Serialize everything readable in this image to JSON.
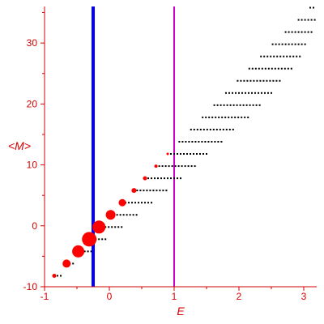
{
  "chart_data": {
    "type": "scatter",
    "xlabel": "E",
    "ylabel": "<M>",
    "xlim": [
      -1,
      3.2
    ],
    "ylim": [
      -10,
      36
    ],
    "xticks": [
      -1,
      0,
      1,
      2,
      3
    ],
    "xtick_labels": [
      "-1",
      "0",
      "1",
      "2",
      "3"
    ],
    "yticks": [
      -10,
      0,
      10,
      20,
      30
    ],
    "ytick_labels": [
      "-10",
      "0",
      "10",
      "20",
      "30"
    ],
    "grid": false,
    "colors": {
      "axis": "#d40000",
      "markers": "#ff0000",
      "dots": "#000000",
      "vline_blue": "#0000ff",
      "vline_magenta": "#cc00cc"
    },
    "vertical_lines": [
      {
        "x": -0.25,
        "color": "#0000ff",
        "width": "thick"
      },
      {
        "x": 1.0,
        "color": "#cc00cc",
        "width": "thin"
      }
    ],
    "red_markers": [
      {
        "x": -0.85,
        "y": -8.2,
        "r": 2.5
      },
      {
        "x": -0.66,
        "y": -6.2,
        "r": 5
      },
      {
        "x": -0.48,
        "y": -4.2,
        "r": 7.5
      },
      {
        "x": -0.31,
        "y": -2.2,
        "r": 9
      },
      {
        "x": -0.16,
        "y": -0.2,
        "r": 8
      },
      {
        "x": 0.02,
        "y": 1.8,
        "r": 6
      },
      {
        "x": 0.2,
        "y": 3.8,
        "r": 4.5
      },
      {
        "x": 0.38,
        "y": 5.8,
        "r": 3
      },
      {
        "x": 0.55,
        "y": 7.8,
        "r": 2.5
      },
      {
        "x": 0.72,
        "y": 9.8,
        "r": 2
      },
      {
        "x": 0.9,
        "y": 11.8,
        "r": 1.5
      }
    ],
    "dot_rows": [
      {
        "y": -8.2,
        "x_start": -0.85,
        "x_end": -0.75
      },
      {
        "y": -6.2,
        "x_start": -0.66,
        "x_end": -0.52
      },
      {
        "y": -4.2,
        "x_start": -0.48,
        "x_end": -0.26
      },
      {
        "y": -2.2,
        "x_start": -0.31,
        "x_end": -0.03
      },
      {
        "y": -0.2,
        "x_start": -0.16,
        "x_end": 0.2
      },
      {
        "y": 1.8,
        "x_start": 0.02,
        "x_end": 0.45
      },
      {
        "y": 3.8,
        "x_start": 0.2,
        "x_end": 0.67
      },
      {
        "y": 5.8,
        "x_start": 0.38,
        "x_end": 0.9
      },
      {
        "y": 7.8,
        "x_start": 0.55,
        "x_end": 1.12
      },
      {
        "y": 9.8,
        "x_start": 0.72,
        "x_end": 1.33
      },
      {
        "y": 11.8,
        "x_start": 0.9,
        "x_end": 1.53
      },
      {
        "y": 13.8,
        "x_start": 1.08,
        "x_end": 1.74
      },
      {
        "y": 15.8,
        "x_start": 1.26,
        "x_end": 1.94
      },
      {
        "y": 17.8,
        "x_start": 1.44,
        "x_end": 2.14
      },
      {
        "y": 19.8,
        "x_start": 1.62,
        "x_end": 2.34
      },
      {
        "y": 21.8,
        "x_start": 1.8,
        "x_end": 2.5
      },
      {
        "y": 23.8,
        "x_start": 1.98,
        "x_end": 2.66
      },
      {
        "y": 25.8,
        "x_start": 2.16,
        "x_end": 2.82
      },
      {
        "y": 27.8,
        "x_start": 2.34,
        "x_end": 2.96
      },
      {
        "y": 29.8,
        "x_start": 2.52,
        "x_end": 3.06
      },
      {
        "y": 31.8,
        "x_start": 2.72,
        "x_end": 3.15
      },
      {
        "y": 33.8,
        "x_start": 2.92,
        "x_end": 3.17
      },
      {
        "y": 35.8,
        "x_start": 3.1,
        "x_end": 3.17
      }
    ]
  }
}
